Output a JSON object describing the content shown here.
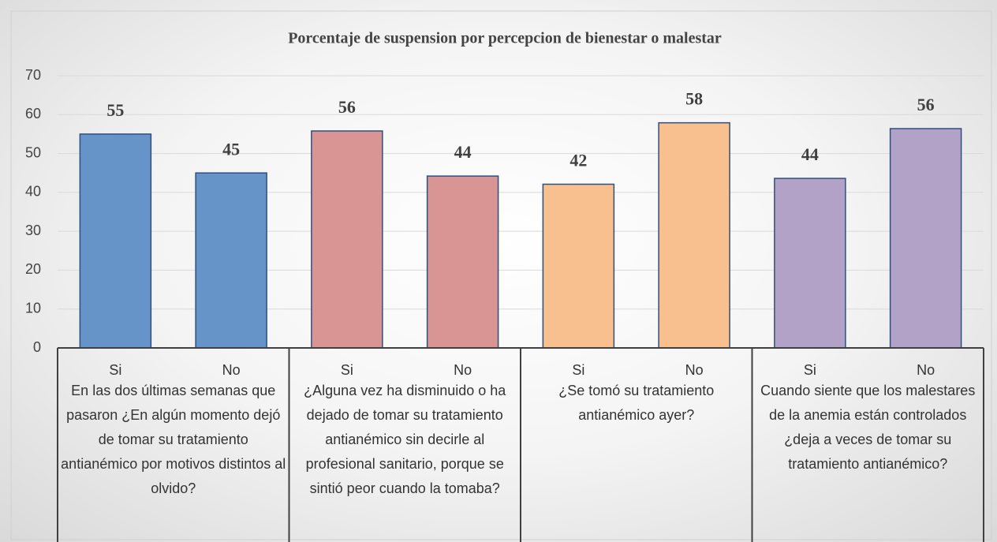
{
  "chart_data": {
    "type": "bar",
    "title": "Porcentaje de suspension por percepcion de bienestar o malestar",
    "categories": [
      "Si",
      "No",
      "Si",
      "No",
      "Si",
      "No",
      "Si",
      "No"
    ],
    "groups": [
      "En las dos últimas semanas que pasaron ¿En algún momento dejó de tomar su tratamiento antianémico por motivos distintos al olvido?",
      "¿Alguna vez ha disminuido o ha dejado de tomar su tratamiento antianémico sin decirle al profesional sanitario, porque se sintió peor cuando la tomaba?",
      "¿Se tomó su tratamiento antianémico ayer?",
      "Cuando siente que los malestares de la anemia están controlados ¿deja a veces de tomar su tratamiento antianémico?"
    ],
    "values": [
      55,
      45,
      55.8,
      44.2,
      42.1,
      57.9,
      43.6,
      56.4
    ],
    "value_labels": [
      "55",
      "45",
      "56",
      "44",
      "42",
      "58",
      "44",
      "56"
    ],
    "colors": [
      "#6694c9",
      "#6694c9",
      "#d99594",
      "#d99594",
      "#f9c08f",
      "#f9c08f",
      "#b3a2c7",
      "#b3a2c7"
    ],
    "ylim": [
      0,
      70
    ],
    "yticks": [
      0,
      10,
      20,
      30,
      40,
      50,
      60,
      70
    ],
    "grid": true
  }
}
